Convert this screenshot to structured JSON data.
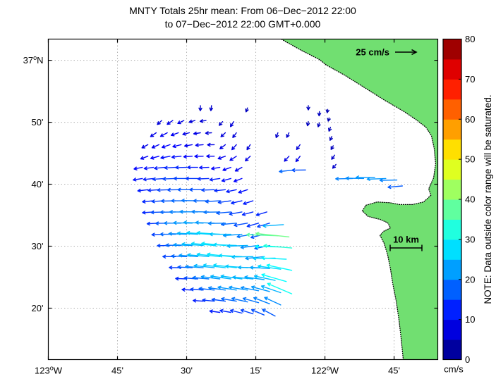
{
  "title": {
    "line1": "MNTY Totals 25hr mean: From 06−Dec−2012 22:00",
    "line2": "to 07−Dec−2012 22:00 GMT+0.000"
  },
  "chart_data": {
    "type": "quiver",
    "description": "HF radar surface current totals (25-hour mean) vector field over Monterey Bay",
    "map": {
      "lon_range": [
        -123.0,
        -121.592
      ],
      "lat_range": [
        36.195,
        37.057
      ],
      "grid": true,
      "grid_color": "#b0b0b0",
      "land_color": "#71DF71",
      "x_ticks": [
        {
          "lon": -123.0,
          "deg": "123",
          "hemi": "W"
        },
        {
          "lon": -122.75,
          "min": "45'"
        },
        {
          "lon": -122.5,
          "min": "30'"
        },
        {
          "lon": -122.25,
          "min": "15'"
        },
        {
          "lon": -122.0,
          "deg": "122",
          "hemi": "W"
        },
        {
          "lon": -121.75,
          "min": "45'"
        }
      ],
      "y_ticks": [
        {
          "lat": 37.0,
          "deg": "37",
          "hemi": "N"
        },
        {
          "lat": 36.8333,
          "min": "50'"
        },
        {
          "lat": 36.6667,
          "min": "40'"
        },
        {
          "lat": 36.5,
          "min": "30'"
        },
        {
          "lat": 36.3333,
          "min": "20'"
        }
      ],
      "coastline": [
        [
          -122.158,
          37.057
        ],
        [
          -122.089,
          37.028
        ],
        [
          -122.02,
          37.002
        ],
        [
          -121.995,
          36.987
        ],
        [
          -121.929,
          36.96
        ],
        [
          -121.86,
          36.928
        ],
        [
          -121.783,
          36.892
        ],
        [
          -121.714,
          36.862
        ],
        [
          -121.668,
          36.839
        ],
        [
          -121.635,
          36.82
        ],
        [
          -121.615,
          36.797
        ],
        [
          -121.605,
          36.763
        ],
        [
          -121.6,
          36.722
        ],
        [
          -121.607,
          36.684
        ],
        [
          -121.625,
          36.654
        ],
        [
          -121.617,
          36.637
        ],
        [
          -121.643,
          36.619
        ],
        [
          -121.684,
          36.612
        ],
        [
          -121.73,
          36.612
        ],
        [
          -121.765,
          36.617
        ],
        [
          -121.811,
          36.619
        ],
        [
          -121.852,
          36.61
        ],
        [
          -121.865,
          36.595
        ],
        [
          -121.844,
          36.58
        ],
        [
          -121.801,
          36.572
        ],
        [
          -121.773,
          36.563
        ],
        [
          -121.763,
          36.549
        ],
        [
          -121.788,
          36.54
        ],
        [
          -121.801,
          36.529
        ],
        [
          -121.786,
          36.508
        ],
        [
          -121.773,
          36.476
        ],
        [
          -121.763,
          36.438
        ],
        [
          -121.755,
          36.4
        ],
        [
          -121.742,
          36.351
        ],
        [
          -121.732,
          36.3
        ],
        [
          -121.724,
          36.249
        ],
        [
          -121.717,
          36.196
        ],
        [
          -121.592,
          36.195
        ],
        [
          -121.592,
          37.057
        ]
      ]
    },
    "scale_reference": {
      "label": "25 cm/s",
      "speed": 25
    },
    "distance_scale": {
      "label": "10 km",
      "km": 10
    },
    "colorbar": {
      "unit": "cm/s",
      "range": [
        0,
        80
      ],
      "band_step": 5,
      "ticks": [
        0,
        10,
        20,
        30,
        40,
        50,
        60,
        70,
        80
      ],
      "note": "NOTE: Data outside color range will be saturated."
    },
    "vectors_format": [
      "lon",
      "lat",
      "speed_cms",
      "direction_deg_ccw_from_east"
    ],
    "vectors": [
      [
        -122.45,
        36.878,
        6,
        268
      ],
      [
        -122.41,
        36.878,
        6,
        262
      ],
      [
        -122.28,
        36.872,
        5,
        250
      ],
      [
        -122.06,
        36.878,
        5,
        270
      ],
      [
        -122.02,
        36.862,
        5,
        266
      ],
      [
        -121.99,
        36.868,
        4,
        262
      ],
      [
        -121.985,
        36.845,
        4,
        255
      ],
      [
        -121.98,
        36.82,
        5,
        250
      ],
      [
        -121.975,
        36.795,
        5,
        245
      ],
      [
        -121.97,
        36.77,
        5,
        240
      ],
      [
        -121.965,
        36.745,
        6,
        235
      ],
      [
        -121.96,
        36.72,
        6,
        230
      ],
      [
        -122.59,
        36.838,
        7,
        222
      ],
      [
        -122.55,
        36.838,
        8,
        214
      ],
      [
        -122.51,
        36.838,
        8,
        206
      ],
      [
        -122.47,
        36.838,
        7,
        196
      ],
      [
        -122.43,
        36.838,
        7,
        188
      ],
      [
        -122.37,
        36.835,
        6,
        228
      ],
      [
        -122.33,
        36.835,
        7,
        238
      ],
      [
        -122.06,
        36.835,
        5,
        258
      ],
      [
        -122.02,
        36.832,
        5,
        252
      ],
      [
        -122.61,
        36.805,
        8,
        214
      ],
      [
        -122.57,
        36.805,
        9,
        208
      ],
      [
        -122.53,
        36.805,
        9,
        200
      ],
      [
        -122.49,
        36.805,
        8,
        194
      ],
      [
        -122.45,
        36.805,
        8,
        189
      ],
      [
        -122.41,
        36.805,
        7,
        184
      ],
      [
        -122.36,
        36.805,
        7,
        222
      ],
      [
        -122.32,
        36.805,
        7,
        233
      ],
      [
        -122.17,
        36.805,
        6,
        250
      ],
      [
        -122.13,
        36.805,
        6,
        244
      ],
      [
        -122.64,
        36.773,
        8,
        208
      ],
      [
        -122.6,
        36.773,
        9,
        204
      ],
      [
        -122.56,
        36.773,
        10,
        199
      ],
      [
        -122.52,
        36.773,
        10,
        194
      ],
      [
        -122.48,
        36.773,
        9,
        190
      ],
      [
        -122.44,
        36.773,
        9,
        185
      ],
      [
        -122.4,
        36.773,
        8,
        181
      ],
      [
        -122.36,
        36.773,
        8,
        218
      ],
      [
        -122.32,
        36.773,
        8,
        228
      ],
      [
        -122.27,
        36.773,
        7,
        238
      ],
      [
        -122.09,
        36.773,
        7,
        235
      ],
      [
        -122.64,
        36.742,
        9,
        200
      ],
      [
        -122.6,
        36.742,
        10,
        195
      ],
      [
        -122.56,
        36.742,
        11,
        191
      ],
      [
        -122.52,
        36.742,
        11,
        186
      ],
      [
        -122.48,
        36.742,
        10,
        184
      ],
      [
        -122.44,
        36.742,
        10,
        181
      ],
      [
        -122.4,
        36.742,
        9,
        180
      ],
      [
        -122.36,
        36.742,
        9,
        199
      ],
      [
        -122.32,
        36.742,
        9,
        213
      ],
      [
        -122.27,
        36.742,
        8,
        224
      ],
      [
        -122.13,
        36.742,
        8,
        228
      ],
      [
        -122.09,
        36.742,
        8,
        233
      ],
      [
        -122.66,
        36.712,
        10,
        191
      ],
      [
        -122.62,
        36.712,
        11,
        188
      ],
      [
        -122.58,
        36.712,
        12,
        186
      ],
      [
        -122.54,
        36.712,
        13,
        183
      ],
      [
        -122.5,
        36.712,
        13,
        181
      ],
      [
        -122.46,
        36.712,
        12,
        180
      ],
      [
        -122.42,
        36.712,
        11,
        182
      ],
      [
        -122.38,
        36.712,
        10,
        190
      ],
      [
        -122.34,
        36.712,
        10,
        200
      ],
      [
        -122.3,
        36.712,
        9,
        209
      ],
      [
        -122.11,
        36.705,
        18,
        186
      ],
      [
        -122.07,
        36.705,
        16,
        181
      ],
      [
        -121.9,
        36.682,
        20,
        181
      ],
      [
        -121.86,
        36.682,
        21,
        179
      ],
      [
        -121.82,
        36.685,
        22,
        180
      ],
      [
        -121.78,
        36.682,
        22,
        182
      ],
      [
        -121.74,
        36.678,
        20,
        181
      ],
      [
        -121.72,
        36.662,
        17,
        185
      ],
      [
        -122.66,
        36.682,
        11,
        189
      ],
      [
        -122.62,
        36.682,
        12,
        186
      ],
      [
        -122.58,
        36.682,
        14,
        184
      ],
      [
        -122.54,
        36.682,
        15,
        182
      ],
      [
        -122.5,
        36.682,
        15,
        180
      ],
      [
        -122.46,
        36.682,
        14,
        180
      ],
      [
        -122.42,
        36.682,
        13,
        182
      ],
      [
        -122.38,
        36.682,
        12,
        188
      ],
      [
        -122.34,
        36.682,
        11,
        195
      ],
      [
        -122.3,
        36.682,
        10,
        201
      ],
      [
        -122.64,
        36.652,
        12,
        187
      ],
      [
        -122.6,
        36.652,
        13,
        184
      ],
      [
        -122.56,
        36.652,
        15,
        182
      ],
      [
        -122.52,
        36.652,
        16,
        181
      ],
      [
        -122.48,
        36.652,
        17,
        180
      ],
      [
        -122.44,
        36.652,
        16,
        180
      ],
      [
        -122.4,
        36.652,
        15,
        182
      ],
      [
        -122.36,
        36.652,
        13,
        186
      ],
      [
        -122.32,
        36.652,
        12,
        192
      ],
      [
        -122.28,
        36.652,
        11,
        198
      ],
      [
        -122.62,
        36.622,
        13,
        185
      ],
      [
        -122.58,
        36.622,
        15,
        183
      ],
      [
        -122.54,
        36.622,
        17,
        181
      ],
      [
        -122.5,
        36.622,
        18,
        180
      ],
      [
        -122.46,
        36.622,
        19,
        179
      ],
      [
        -122.42,
        36.622,
        18,
        180
      ],
      [
        -122.38,
        36.622,
        17,
        183
      ],
      [
        -122.34,
        36.622,
        15,
        188
      ],
      [
        -122.3,
        36.622,
        13,
        193
      ],
      [
        -122.26,
        36.622,
        12,
        198
      ],
      [
        -122.62,
        36.592,
        13,
        184
      ],
      [
        -122.58,
        36.592,
        16,
        182
      ],
      [
        -122.54,
        36.592,
        18,
        181
      ],
      [
        -122.5,
        36.592,
        20,
        180
      ],
      [
        -122.46,
        36.592,
        21,
        179
      ],
      [
        -122.42,
        36.592,
        20,
        179
      ],
      [
        -122.38,
        36.592,
        19,
        181
      ],
      [
        -122.34,
        36.592,
        17,
        185
      ],
      [
        -122.3,
        36.592,
        15,
        190
      ],
      [
        -122.26,
        36.592,
        13,
        195
      ],
      [
        -122.21,
        36.592,
        13,
        197
      ],
      [
        -122.6,
        36.562,
        14,
        183
      ],
      [
        -122.56,
        36.562,
        17,
        181
      ],
      [
        -122.52,
        36.562,
        20,
        180
      ],
      [
        -122.48,
        36.562,
        22,
        179
      ],
      [
        -122.44,
        36.562,
        23,
        178
      ],
      [
        -122.4,
        36.562,
        22,
        178
      ],
      [
        -122.36,
        36.562,
        20,
        181
      ],
      [
        -122.32,
        36.562,
        18,
        185
      ],
      [
        -122.28,
        36.562,
        16,
        190
      ],
      [
        -122.24,
        36.562,
        14,
        196
      ],
      [
        -122.2,
        36.562,
        15,
        197
      ],
      [
        -122.15,
        36.558,
        24,
        184
      ],
      [
        -122.58,
        36.532,
        15,
        182
      ],
      [
        -122.54,
        36.532,
        18,
        180
      ],
      [
        -122.5,
        36.532,
        21,
        178
      ],
      [
        -122.46,
        36.532,
        24,
        177
      ],
      [
        -122.42,
        36.532,
        26,
        176
      ],
      [
        -122.38,
        36.532,
        27,
        176
      ],
      [
        -122.34,
        36.532,
        25,
        180
      ],
      [
        -122.3,
        36.532,
        22,
        184
      ],
      [
        -122.26,
        36.532,
        19,
        189
      ],
      [
        -122.22,
        36.532,
        16,
        194
      ],
      [
        -122.17,
        36.528,
        37,
        178
      ],
      [
        -122.13,
        36.525,
        39,
        174
      ],
      [
        -122.56,
        36.502,
        15,
        181
      ],
      [
        -122.52,
        36.502,
        18,
        179
      ],
      [
        -122.48,
        36.502,
        22,
        178
      ],
      [
        -122.44,
        36.502,
        25,
        176
      ],
      [
        -122.4,
        36.502,
        27,
        175
      ],
      [
        -122.36,
        36.502,
        28,
        175
      ],
      [
        -122.32,
        36.502,
        27,
        178
      ],
      [
        -122.28,
        36.502,
        24,
        182
      ],
      [
        -122.24,
        36.502,
        21,
        187
      ],
      [
        -122.2,
        36.502,
        18,
        192
      ],
      [
        -122.16,
        36.498,
        30,
        179
      ],
      [
        -122.12,
        36.495,
        33,
        175
      ],
      [
        -122.54,
        36.472,
        15,
        180
      ],
      [
        -122.5,
        36.472,
        18,
        178
      ],
      [
        -122.46,
        36.472,
        22,
        176
      ],
      [
        -122.42,
        36.472,
        25,
        175
      ],
      [
        -122.38,
        36.472,
        27,
        174
      ],
      [
        -122.34,
        36.472,
        28,
        174
      ],
      [
        -122.3,
        36.472,
        27,
        177
      ],
      [
        -122.26,
        36.472,
        25,
        181
      ],
      [
        -122.22,
        36.472,
        22,
        186
      ],
      [
        -122.18,
        36.468,
        26,
        181
      ],
      [
        -122.14,
        36.465,
        29,
        177
      ],
      [
        -122.52,
        36.442,
        14,
        179
      ],
      [
        -122.48,
        36.442,
        17,
        177
      ],
      [
        -122.44,
        36.442,
        21,
        176
      ],
      [
        -122.4,
        36.442,
        24,
        174
      ],
      [
        -122.36,
        36.442,
        26,
        173
      ],
      [
        -122.32,
        36.442,
        27,
        173
      ],
      [
        -122.28,
        36.442,
        26,
        176
      ],
      [
        -122.24,
        36.442,
        24,
        179
      ],
      [
        -122.2,
        36.44,
        23,
        177
      ],
      [
        -122.16,
        36.438,
        27,
        172
      ],
      [
        -122.12,
        36.435,
        30,
        168
      ],
      [
        -122.5,
        36.412,
        13,
        178
      ],
      [
        -122.46,
        36.412,
        16,
        176
      ],
      [
        -122.42,
        36.412,
        19,
        175
      ],
      [
        -122.38,
        36.412,
        22,
        173
      ],
      [
        -122.34,
        36.412,
        24,
        172
      ],
      [
        -122.3,
        36.412,
        25,
        172
      ],
      [
        -122.26,
        36.412,
        24,
        175
      ],
      [
        -122.22,
        36.41,
        23,
        172
      ],
      [
        -122.18,
        36.408,
        25,
        168
      ],
      [
        -122.14,
        36.405,
        30,
        164
      ],
      [
        -122.48,
        36.382,
        12,
        177
      ],
      [
        -122.44,
        36.382,
        15,
        176
      ],
      [
        -122.4,
        36.382,
        18,
        174
      ],
      [
        -122.36,
        36.382,
        20,
        172
      ],
      [
        -122.32,
        36.382,
        22,
        171
      ],
      [
        -122.28,
        36.382,
        22,
        171
      ],
      [
        -122.24,
        36.38,
        21,
        169
      ],
      [
        -122.2,
        36.378,
        22,
        165
      ],
      [
        -122.16,
        36.375,
        24,
        161
      ],
      [
        -122.12,
        36.372,
        31,
        157
      ],
      [
        -122.44,
        36.352,
        12,
        176
      ],
      [
        -122.4,
        36.352,
        14,
        174
      ],
      [
        -122.36,
        36.352,
        16,
        172
      ],
      [
        -122.32,
        36.352,
        18,
        170
      ],
      [
        -122.28,
        36.35,
        19,
        167
      ],
      [
        -122.24,
        36.348,
        19,
        164
      ],
      [
        -122.2,
        36.345,
        20,
        159
      ],
      [
        -122.16,
        36.342,
        21,
        155
      ],
      [
        -122.38,
        36.322,
        12,
        172
      ],
      [
        -122.34,
        36.322,
        13,
        170
      ],
      [
        -122.3,
        36.32,
        14,
        166
      ],
      [
        -122.26,
        36.318,
        15,
        162
      ],
      [
        -122.22,
        36.315,
        16,
        157
      ],
      [
        -122.18,
        36.312,
        17,
        152
      ]
    ]
  }
}
